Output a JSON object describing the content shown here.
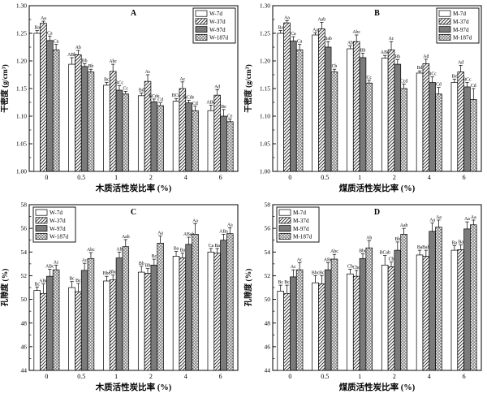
{
  "figure": {
    "background": "#ffffff"
  },
  "colors": {
    "axis": "#000000",
    "bar_solid": "#7b7b7b",
    "hatch": "#222222",
    "crosshatch": "#5a5a5a",
    "bar_plain": "#ffffff"
  },
  "chart_data": [
    {
      "id": "A",
      "type": "bar",
      "title": "A",
      "xlabel": "木质活性炭比率 (%)",
      "ylabel": "干密度 (g/cm³)",
      "ylim": [
        1.0,
        1.3
      ],
      "yticks": [
        1.0,
        1.05,
        1.1,
        1.15,
        1.2,
        1.25,
        1.3
      ],
      "ytick_decimals": 2,
      "grid": false,
      "legend_position": "top-right",
      "categories": [
        "0",
        "0.5",
        "1",
        "2",
        "4",
        "6"
      ],
      "series": [
        {
          "name": "W-7d",
          "pattern": "plain",
          "values": [
            1.25,
            1.194,
            1.156,
            1.137,
            1.127,
            1.11
          ],
          "errors": [
            0.005,
            0.012,
            0.005,
            0.005,
            0.005,
            0.01
          ],
          "labels": [
            "Ba",
            "ABb",
            "Bc",
            "Bd",
            "BCd",
            "ABd"
          ]
        },
        {
          "name": "W-37d",
          "pattern": "diag",
          "values": [
            1.268,
            1.211,
            1.181,
            1.163,
            1.15,
            1.138
          ],
          "errors": [
            0.004,
            0.008,
            0.013,
            0.012,
            0.012,
            0.01
          ],
          "labels": [
            "Aa",
            "Ab",
            "Abc",
            "Ac",
            "Ac",
            "Ad"
          ]
        },
        {
          "name": "W-97d",
          "pattern": "solid",
          "values": [
            1.237,
            1.19,
            1.147,
            1.126,
            1.124,
            1.1
          ],
          "errors": [
            0.008,
            0.005,
            0.008,
            0.005,
            0.005,
            0.012
          ],
          "labels": [
            "Ca",
            "Bb",
            "BCc",
            "BCde",
            "BCde",
            "Be"
          ]
        },
        {
          "name": "W-187d",
          "pattern": "cross",
          "values": [
            1.22,
            1.18,
            1.14,
            1.119,
            1.11,
            1.09
          ],
          "errors": [
            0.01,
            0.005,
            0.005,
            0.005,
            0.008,
            0.005
          ],
          "labels": [
            "Ca",
            "Bb",
            "Cc",
            "Cd",
            "Cd",
            "Ce"
          ]
        }
      ]
    },
    {
      "id": "B",
      "type": "bar",
      "title": "B",
      "xlabel": "煤质活性炭比率 (%)",
      "ylabel": "干密度 (g/cm³)",
      "ylim": [
        1.0,
        1.3
      ],
      "yticks": [
        1.0,
        1.05,
        1.1,
        1.15,
        1.2,
        1.25,
        1.3
      ],
      "ytick_decimals": 2,
      "grid": false,
      "legend_position": "top-right",
      "categories": [
        "0",
        "0.5",
        "1",
        "2",
        "4",
        "6"
      ],
      "series": [
        {
          "name": "M-7d",
          "pattern": "plain",
          "values": [
            1.25,
            1.247,
            1.222,
            1.205,
            1.178,
            1.161
          ],
          "errors": [
            0.005,
            0.004,
            0.005,
            0.005,
            0.004,
            0.006
          ],
          "labels": [
            "Ba",
            "Aa",
            "Ab",
            "ABc",
            "Bd",
            "Be"
          ]
        },
        {
          "name": "M-37d",
          "pattern": "diag",
          "values": [
            1.269,
            1.258,
            1.235,
            1.22,
            1.195,
            1.18
          ],
          "errors": [
            0.004,
            0.012,
            0.012,
            0.015,
            0.008,
            0.012
          ],
          "labels": [
            "Aa",
            "Aab",
            "Abc",
            "Ac",
            "Ad",
            "Ad"
          ]
        },
        {
          "name": "M-97d",
          "pattern": "solid",
          "values": [
            1.236,
            1.225,
            1.206,
            1.194,
            1.161,
            1.153
          ],
          "errors": [
            0.008,
            0.01,
            0.008,
            0.008,
            0.01,
            0.008
          ],
          "labels": [
            "Ca",
            "Bab",
            "Bb",
            "Bb",
            "BCc",
            "BCc"
          ]
        },
        {
          "name": "M-187d",
          "pattern": "cross",
          "values": [
            1.22,
            1.18,
            1.16,
            1.15,
            1.14,
            1.13
          ],
          "errors": [
            0.01,
            0.005,
            0.005,
            0.008,
            0.012,
            0.02
          ],
          "labels": [
            "Ca",
            "Cb",
            "Cc",
            "Ccd",
            "Cd",
            "Cd"
          ]
        }
      ]
    },
    {
      "id": "C",
      "type": "bar",
      "title": "C",
      "xlabel": "木质活性炭比率 (%)",
      "ylabel": "孔隙度 (%)",
      "ylim": [
        44,
        58
      ],
      "yticks": [
        44,
        46,
        48,
        50,
        52,
        54,
        56,
        58
      ],
      "ytick_decimals": 0,
      "grid": false,
      "legend_position": "top-left",
      "categories": [
        "0",
        "0.5",
        "1",
        "2",
        "4",
        "6"
      ],
      "series": [
        {
          "name": "W-7d",
          "pattern": "plain",
          "values": [
            50.75,
            51.0,
            51.55,
            52.3,
            53.65,
            54.0
          ],
          "errors": [
            0.3,
            0.5,
            0.4,
            0.5,
            0.4,
            0.3
          ],
          "labels": [
            "Bc",
            "Bc",
            "Bbc",
            "Bb",
            "Ba",
            "Ca"
          ]
        },
        {
          "name": "W-37d",
          "pattern": "diag",
          "values": [
            50.5,
            50.65,
            51.65,
            52.2,
            53.5,
            53.9
          ],
          "errors": [
            0.8,
            0.7,
            0.4,
            0.4,
            0.4,
            0.4
          ],
          "labels": [
            "ABc",
            "Bc",
            "Bbc",
            "Bb",
            "Ba",
            "Ba"
          ]
        },
        {
          "name": "W-97d",
          "pattern": "solid",
          "values": [
            51.95,
            52.45,
            53.5,
            52.9,
            54.65,
            55.0
          ],
          "errors": [
            0.6,
            0.6,
            0.5,
            0.5,
            0.6,
            0.5
          ],
          "labels": [
            "ABc",
            "Ac",
            "Ab",
            "Bc",
            "ABab",
            "ABa"
          ]
        },
        {
          "name": "W-187d",
          "pattern": "cross",
          "values": [
            52.5,
            53.45,
            54.45,
            54.75,
            55.5,
            55.55
          ],
          "errors": [
            0.4,
            0.5,
            0.6,
            0.6,
            0.9,
            0.5
          ],
          "labels": [
            "Ac",
            "Abc",
            "Aab",
            "Aa",
            "Aa",
            "Aa"
          ]
        }
      ]
    },
    {
      "id": "D",
      "type": "bar",
      "title": "D",
      "xlabel": "煤质活性炭比率 (%)",
      "ylabel": "孔隙度 (%)",
      "ylim": [
        44,
        58
      ],
      "yticks": [
        44,
        46,
        48,
        50,
        52,
        54,
        56,
        58
      ],
      "ytick_decimals": 0,
      "grid": false,
      "legend_position": "top-left",
      "categories": [
        "0",
        "0.5",
        "1",
        "2",
        "4",
        "6"
      ],
      "series": [
        {
          "name": "M-7d",
          "pattern": "plain",
          "values": [
            50.7,
            51.4,
            52.15,
            52.9,
            53.75,
            54.15
          ],
          "errors": [
            0.5,
            0.6,
            0.4,
            0.8,
            0.4,
            0.4
          ],
          "labels": [
            "Bc",
            "Bbc",
            "Cb",
            "BCab",
            "Ba",
            "Ba"
          ]
        },
        {
          "name": "M-37d",
          "pattern": "diag",
          "values": [
            50.5,
            51.3,
            51.95,
            52.75,
            53.65,
            54.2
          ],
          "errors": [
            0.7,
            0.7,
            0.5,
            0.4,
            0.5,
            0.4
          ],
          "labels": [
            "Bc",
            "Bc",
            "Cbc",
            "Cb",
            "Bab",
            "Ba"
          ]
        },
        {
          "name": "M-97d",
          "pattern": "solid",
          "values": [
            51.9,
            52.5,
            53.45,
            54.15,
            55.75,
            55.95
          ],
          "errors": [
            0.6,
            0.6,
            0.4,
            0.7,
            0.7,
            0.6
          ],
          "labels": [
            "Ac",
            "ABc",
            "Bbc",
            "Bb",
            "Aa",
            "Aa"
          ]
        },
        {
          "name": "M-187d",
          "pattern": "cross",
          "values": [
            52.5,
            53.4,
            54.35,
            55.5,
            56.1,
            56.3
          ],
          "errors": [
            0.6,
            0.4,
            0.6,
            0.5,
            0.6,
            0.4
          ],
          "labels": [
            "Ac",
            "Abc",
            "Ab",
            "Aab",
            "Aa",
            "Aa"
          ]
        }
      ]
    }
  ]
}
